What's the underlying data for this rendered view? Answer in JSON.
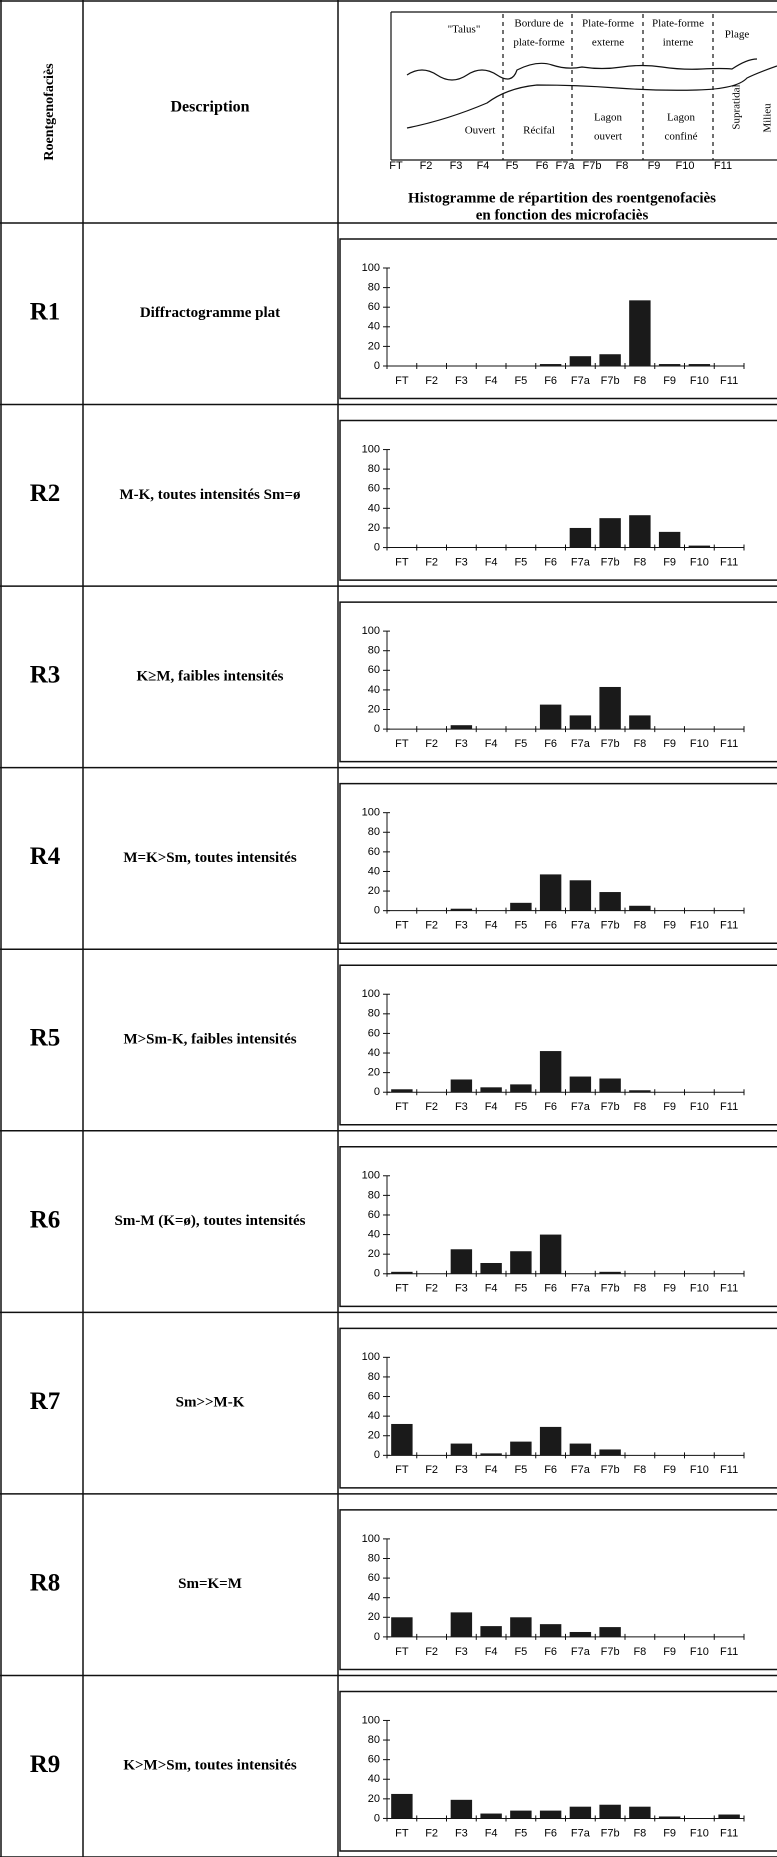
{
  "header": {
    "code": "Roentgenofaciès",
    "description": "Description",
    "caption": [
      "Histogramme de répartition des roentgenofaciès",
      "en fonction des microfaciès"
    ]
  },
  "diagram": {
    "zones_top": [
      [
        "\"Talus\""
      ],
      [
        "Bordure de",
        "plate-forme"
      ],
      [
        "Plate-forme",
        "externe"
      ],
      [
        "Plate-forme",
        "interne"
      ],
      [
        "Plage"
      ]
    ],
    "zones_bottom": [
      [
        "Ouvert"
      ],
      [
        "Récifal"
      ],
      [
        "Lagon",
        "ouvert"
      ],
      [
        "Lagon",
        "confiné"
      ]
    ],
    "side": [
      "Supratidal",
      "Milieu"
    ],
    "ticks": [
      "FT",
      "F2",
      "F3",
      "F4",
      "F5",
      "F6",
      "F7a",
      "F7b",
      "F8",
      "F9",
      "F10",
      "F11"
    ]
  },
  "rows": [
    {
      "code": "R1",
      "description": "Diffractogramme plat",
      "chart": {
        "type": "bar",
        "categories": [
          "FT",
          "F2",
          "F3",
          "F4",
          "F5",
          "F6",
          "F7a",
          "F7b",
          "F8",
          "F9",
          "F10",
          "F11"
        ],
        "values": [
          0,
          0,
          0,
          0,
          0,
          2,
          10,
          12,
          67,
          2,
          2,
          0
        ],
        "ylim": [
          0,
          100
        ],
        "yticks": [
          0,
          20,
          40,
          60,
          80,
          100
        ]
      }
    },
    {
      "code": "R2",
      "description": "M-K, toutes intensités Sm=ø",
      "chart": {
        "type": "bar",
        "categories": [
          "FT",
          "F2",
          "F3",
          "F4",
          "F5",
          "F6",
          "F7a",
          "F7b",
          "F8",
          "F9",
          "F10",
          "F11"
        ],
        "values": [
          0,
          0,
          0,
          0,
          0,
          0,
          20,
          30,
          33,
          16,
          2,
          0
        ],
        "ylim": [
          0,
          100
        ],
        "yticks": [
          0,
          20,
          40,
          60,
          80,
          100
        ]
      }
    },
    {
      "code": "R3",
      "description": "K≥M, faibles intensités",
      "chart": {
        "type": "bar",
        "categories": [
          "FT",
          "F2",
          "F3",
          "F4",
          "F5",
          "F6",
          "F7a",
          "F7b",
          "F8",
          "F9",
          "F10",
          "F11"
        ],
        "values": [
          0,
          0,
          4,
          0,
          0,
          25,
          14,
          43,
          14,
          0,
          0,
          0
        ],
        "ylim": [
          0,
          100
        ],
        "yticks": [
          0,
          20,
          40,
          60,
          80,
          100
        ]
      }
    },
    {
      "code": "R4",
      "description": "M=K>Sm, toutes intensités",
      "chart": {
        "type": "bar",
        "categories": [
          "FT",
          "F2",
          "F3",
          "F4",
          "F5",
          "F6",
          "F7a",
          "F7b",
          "F8",
          "F9",
          "F10",
          "F11"
        ],
        "values": [
          0,
          0,
          2,
          0,
          8,
          37,
          31,
          19,
          5,
          0,
          0,
          0
        ],
        "ylim": [
          0,
          100
        ],
        "yticks": [
          0,
          20,
          40,
          60,
          80,
          100
        ]
      }
    },
    {
      "code": "R5",
      "description": "M>Sm-K, faibles intensités",
      "chart": {
        "type": "bar",
        "categories": [
          "FT",
          "F2",
          "F3",
          "F4",
          "F5",
          "F6",
          "F7a",
          "F7b",
          "F8",
          "F9",
          "F10",
          "F11"
        ],
        "values": [
          3,
          0,
          13,
          5,
          8,
          42,
          16,
          14,
          2,
          0,
          0,
          0
        ],
        "ylim": [
          0,
          100
        ],
        "yticks": [
          0,
          20,
          40,
          60,
          80,
          100
        ]
      }
    },
    {
      "code": "R6",
      "description": "Sm-M (K=ø), toutes intensités",
      "chart": {
        "type": "bar",
        "categories": [
          "FT",
          "F2",
          "F3",
          "F4",
          "F5",
          "F6",
          "F7a",
          "F7b",
          "F8",
          "F9",
          "F10",
          "F11"
        ],
        "values": [
          2,
          0,
          25,
          11,
          23,
          40,
          0,
          2,
          0,
          0,
          0,
          0
        ],
        "ylim": [
          0,
          100
        ],
        "yticks": [
          0,
          20,
          40,
          60,
          80,
          100
        ]
      }
    },
    {
      "code": "R7",
      "description": "Sm>>M-K",
      "chart": {
        "type": "bar",
        "categories": [
          "FT",
          "F2",
          "F3",
          "F4",
          "F5",
          "F6",
          "F7a",
          "F7b",
          "F8",
          "F9",
          "F10",
          "F11"
        ],
        "values": [
          32,
          0,
          12,
          2,
          14,
          29,
          12,
          6,
          0,
          0,
          0,
          0
        ],
        "ylim": [
          0,
          100
        ],
        "yticks": [
          0,
          20,
          40,
          60,
          80,
          100
        ]
      }
    },
    {
      "code": "R8",
      "description": "Sm=K=M",
      "chart": {
        "type": "bar",
        "categories": [
          "FT",
          "F2",
          "F3",
          "F4",
          "F5",
          "F6",
          "F7a",
          "F7b",
          "F8",
          "F9",
          "F10",
          "F11"
        ],
        "values": [
          20,
          0,
          25,
          11,
          20,
          13,
          5,
          10,
          0,
          0,
          0,
          0
        ],
        "ylim": [
          0,
          100
        ],
        "yticks": [
          0,
          20,
          40,
          60,
          80,
          100
        ]
      }
    },
    {
      "code": "R9",
      "description": "K>M>Sm, toutes intensités",
      "chart": {
        "type": "bar",
        "categories": [
          "FT",
          "F2",
          "F3",
          "F4",
          "F5",
          "F6",
          "F7a",
          "F7b",
          "F8",
          "F9",
          "F10",
          "F11"
        ],
        "values": [
          25,
          0,
          19,
          5,
          8,
          8,
          12,
          14,
          12,
          2,
          0,
          4
        ],
        "ylim": [
          0,
          100
        ],
        "yticks": [
          0,
          20,
          40,
          60,
          80,
          100
        ]
      }
    }
  ]
}
